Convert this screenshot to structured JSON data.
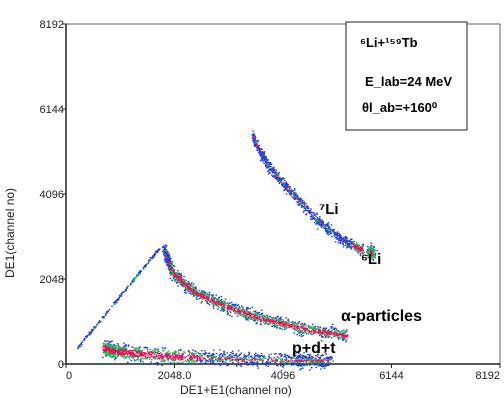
{
  "chart_data": {
    "type": "heatmap",
    "xlabel": "DE1+E1(channel no)",
    "ylabel": "DE1(channel no)",
    "xlim": [
      0,
      8192
    ],
    "ylim": [
      0,
      8192
    ],
    "x_ticks": [
      "0",
      "2048.0",
      "4096",
      "6144",
      "8192"
    ],
    "y_ticks": [
      "0",
      "2048",
      "4096",
      "6144",
      "8192"
    ],
    "legend_box": {
      "reaction": "⁶Li+¹⁵⁹Tb",
      "energy": "E_lab=24 MeV",
      "angle": "θl_ab=+160⁰"
    },
    "bands": [
      {
        "label": "⁷Li"
      },
      {
        "label": "⁶Li"
      },
      {
        "label": "α-particles"
      },
      {
        "label": "p+d+t"
      }
    ],
    "colors": {
      "low": "#1f3fd9",
      "mid": "#2bb35e",
      "high": "#e0145a"
    }
  }
}
